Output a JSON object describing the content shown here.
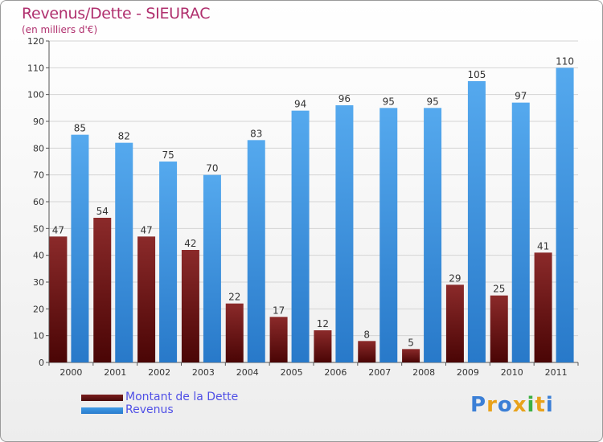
{
  "title": "Revenus/Dette - SIEURAC",
  "subtitle": "(en milliers d'€)",
  "colors": {
    "debt": "#7a1d1d",
    "revenue": "#3f9ae6",
    "title": "#b0306e",
    "legend_text": "#4f4fe6",
    "grid": "#d4d4d4",
    "axis": "#555555"
  },
  "legend": {
    "debt_label": "Montant de la Dette",
    "revenue_label": "Revenus"
  },
  "logo": {
    "text": "Proxiti",
    "letter_colors": [
      "#3b7fd6",
      "#e8a21b",
      "#3b7fd6",
      "#e8a21b",
      "#3cb043",
      "#e8a21b",
      "#3b7fd6"
    ]
  },
  "chart_data": {
    "type": "bar",
    "categories": [
      "2000",
      "2001",
      "2002",
      "2003",
      "2004",
      "2005",
      "2006",
      "2007",
      "2008",
      "2009",
      "2010",
      "2011"
    ],
    "series": [
      {
        "name": "Montant de la Dette",
        "values": [
          47,
          54,
          47,
          42,
          22,
          17,
          12,
          8,
          5,
          29,
          25,
          41
        ]
      },
      {
        "name": "Revenus",
        "values": [
          85,
          82,
          75,
          70,
          83,
          94,
          96,
          95,
          95,
          105,
          97,
          110
        ]
      }
    ],
    "ylim": [
      0,
      120
    ],
    "yticks": [
      0,
      10,
      20,
      30,
      40,
      50,
      60,
      70,
      80,
      90,
      100,
      110,
      120
    ],
    "grid": true,
    "legend_position": "bottom-left"
  }
}
